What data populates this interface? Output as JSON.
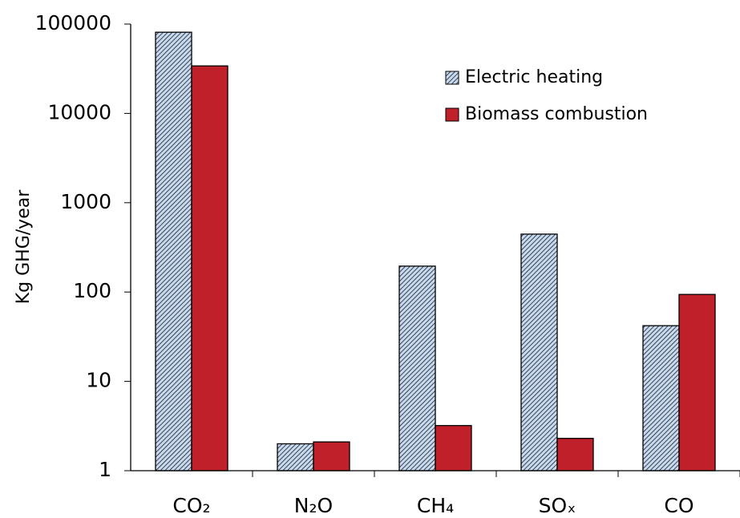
{
  "chart_data": {
    "type": "bar",
    "y_label": "Kg GHG/year",
    "categories": [
      "CO₂",
      "N₂O",
      "CH₄",
      "SOₓ",
      "CO"
    ],
    "series": [
      {
        "name": "Electric heating",
        "color": "#c5d9f1",
        "hatch": true,
        "values": [
          81000,
          2.0,
          195,
          445,
          42
        ]
      },
      {
        "name": "Biomass combustion",
        "color": "#c0202a",
        "hatch": false,
        "values": [
          34000,
          2.1,
          3.2,
          2.3,
          94
        ]
      }
    ],
    "log_scale": true,
    "ylim": [
      1,
      100000
    ],
    "yticks": [
      1,
      10,
      100,
      1000,
      10000,
      100000
    ],
    "legend": "upper right"
  }
}
